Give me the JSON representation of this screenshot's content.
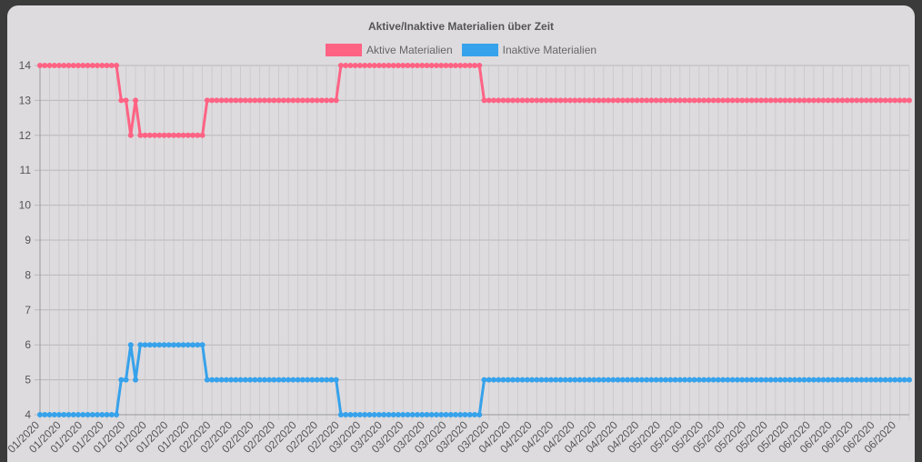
{
  "chart_data": {
    "type": "line",
    "title": "Aktive/Inaktive Materialien über Zeit",
    "ylim": [
      4,
      14
    ],
    "yticks": [
      "4",
      "5",
      "6",
      "7",
      "8",
      "9",
      "10",
      "11",
      "12",
      "13",
      "14"
    ],
    "xtick_labels": [
      "01/2020",
      "01/2020",
      "01/2020",
      "01/2020",
      "01/2020",
      "01/2020",
      "01/2020",
      "01/2020",
      "02/2020",
      "02/2020",
      "02/2020",
      "02/2020",
      "02/2020",
      "02/2020",
      "02/2020",
      "03/2020",
      "03/2020",
      "03/2020",
      "03/2020",
      "03/2020",
      "03/2020",
      "03/2020",
      "04/2020",
      "04/2020",
      "04/2020",
      "04/2020",
      "04/2020",
      "04/2020",
      "04/2020",
      "05/2020",
      "05/2020",
      "05/2020",
      "05/2020",
      "05/2020",
      "05/2020",
      "05/2020",
      "06/2020",
      "06/2020",
      "06/2020",
      "06/2020",
      "06/2020"
    ],
    "series": [
      {
        "name": "Aktive Materialien",
        "color": "#ff6384",
        "values": [
          14,
          14,
          14,
          14,
          14,
          14,
          14,
          14,
          14,
          14,
          14,
          14,
          14,
          14,
          14,
          14,
          14,
          13,
          13,
          12,
          13,
          12,
          12,
          12,
          12,
          12,
          12,
          12,
          12,
          12,
          12,
          12,
          12,
          12,
          12,
          13,
          13,
          13,
          13,
          13,
          13,
          13,
          13,
          13,
          13,
          13,
          13,
          13,
          13,
          13,
          13,
          13,
          13,
          13,
          13,
          13,
          13,
          13,
          13,
          13,
          13,
          13,
          13,
          14,
          14,
          14,
          14,
          14,
          14,
          14,
          14,
          14,
          14,
          14,
          14,
          14,
          14,
          14,
          14,
          14,
          14,
          14,
          14,
          14,
          14,
          14,
          14,
          14,
          14,
          14,
          14,
          14,
          14,
          13,
          13,
          13,
          13,
          13,
          13,
          13,
          13,
          13,
          13,
          13,
          13,
          13,
          13,
          13,
          13,
          13,
          13,
          13,
          13,
          13,
          13,
          13,
          13,
          13,
          13,
          13,
          13,
          13,
          13,
          13,
          13,
          13,
          13,
          13,
          13,
          13,
          13,
          13,
          13,
          13,
          13,
          13,
          13,
          13,
          13,
          13,
          13,
          13,
          13,
          13,
          13,
          13,
          13,
          13,
          13,
          13,
          13,
          13,
          13,
          13,
          13,
          13,
          13,
          13,
          13,
          13,
          13,
          13,
          13,
          13,
          13,
          13,
          13,
          13,
          13,
          13,
          13,
          13,
          13,
          13,
          13,
          13,
          13,
          13,
          13,
          13,
          13,
          13,
          13
        ]
      },
      {
        "name": "Inaktive Materialien",
        "color": "#36a2eb",
        "values": [
          4,
          4,
          4,
          4,
          4,
          4,
          4,
          4,
          4,
          4,
          4,
          4,
          4,
          4,
          4,
          4,
          4,
          5,
          5,
          6,
          5,
          6,
          6,
          6,
          6,
          6,
          6,
          6,
          6,
          6,
          6,
          6,
          6,
          6,
          6,
          5,
          5,
          5,
          5,
          5,
          5,
          5,
          5,
          5,
          5,
          5,
          5,
          5,
          5,
          5,
          5,
          5,
          5,
          5,
          5,
          5,
          5,
          5,
          5,
          5,
          5,
          5,
          5,
          4,
          4,
          4,
          4,
          4,
          4,
          4,
          4,
          4,
          4,
          4,
          4,
          4,
          4,
          4,
          4,
          4,
          4,
          4,
          4,
          4,
          4,
          4,
          4,
          4,
          4,
          4,
          4,
          4,
          4,
          5,
          5,
          5,
          5,
          5,
          5,
          5,
          5,
          5,
          5,
          5,
          5,
          5,
          5,
          5,
          5,
          5,
          5,
          5,
          5,
          5,
          5,
          5,
          5,
          5,
          5,
          5,
          5,
          5,
          5,
          5,
          5,
          5,
          5,
          5,
          5,
          5,
          5,
          5,
          5,
          5,
          5,
          5,
          5,
          5,
          5,
          5,
          5,
          5,
          5,
          5,
          5,
          5,
          5,
          5,
          5,
          5,
          5,
          5,
          5,
          5,
          5,
          5,
          5,
          5,
          5,
          5,
          5,
          5,
          5,
          5,
          5,
          5,
          5,
          5,
          5,
          5,
          5,
          5,
          5,
          5,
          5,
          5,
          5,
          5,
          5,
          5,
          5,
          5,
          5
        ]
      }
    ],
    "grid": true,
    "legend_position": "top-center"
  }
}
